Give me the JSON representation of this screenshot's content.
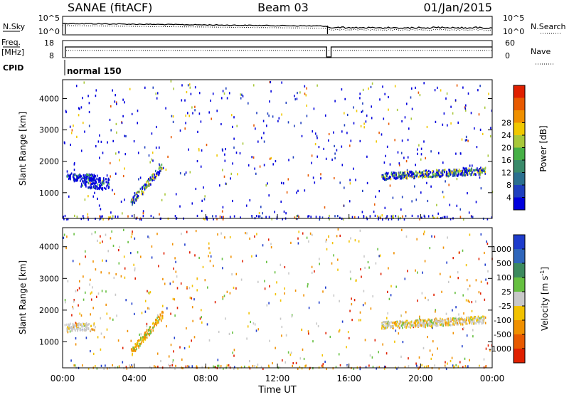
{
  "header": {
    "station": "SANAE (fitACF)",
    "beam": "Beam 03",
    "date": "01/Jan/2015"
  },
  "status": {
    "nsky_label": "N.Sky",
    "nsky_ticks": [
      "10^5",
      "10^0"
    ],
    "nsearch_label": "N.Search",
    "nsearch_ticks": [
      "10^5",
      "10^0"
    ],
    "freq_label": "Freq.",
    "freq_unit": "[MHz]",
    "freq_ticks": [
      "18",
      "8"
    ],
    "nave_label": "Nave",
    "nave_ticks": [
      "60",
      "0"
    ],
    "cpid_label": "CPID",
    "cpid_value": "normal 150"
  },
  "chart_data": [
    {
      "type": "heatmap",
      "ylabel": "Slant Range [km]",
      "xlabel": "",
      "xlim": [
        "00:00",
        "24:00"
      ],
      "ylim": [
        180,
        4600
      ],
      "yticks": [
        "1000",
        "2000",
        "3000",
        "4000"
      ],
      "colorbar": {
        "label": "Power [dB]",
        "ticks": [
          "4",
          "8",
          "12",
          "16",
          "20",
          "24",
          "28"
        ],
        "colors": [
          "#0000dd",
          "#1f3fbf",
          "#2b6f8f",
          "#3a8a6a",
          "#46b046",
          "#a8c83a",
          "#f0c800",
          "#f09000",
          "#e85a00",
          "#e02000"
        ]
      },
      "bands": [
        {
          "t0": 0.2,
          "t1": 1.8,
          "r0": 1380,
          "r1": 1620,
          "dominant": "blue"
        },
        {
          "t0": 1.0,
          "t1": 2.6,
          "r0": 1150,
          "r1": 1500,
          "dominant": "blue"
        },
        {
          "t0": 3.8,
          "t1": 5.6,
          "r0": 700,
          "r1": 1900,
          "dominant": "blue-green"
        },
        {
          "t0": 17.8,
          "t1": 23.6,
          "r0": 1450,
          "r1": 1900,
          "dominant": "blue-green"
        }
      ]
    },
    {
      "type": "heatmap",
      "ylabel": "Slant Range [km]",
      "xlabel": "Time UT",
      "xlim": [
        "00:00",
        "24:00"
      ],
      "ylim": [
        180,
        4600
      ],
      "xticks": [
        "00:00",
        "04:00",
        "08:00",
        "12:00",
        "16:00",
        "20:00",
        "00:00"
      ],
      "yticks": [
        "1000",
        "2000",
        "3000",
        "4000"
      ],
      "colorbar": {
        "label": "Velocity [m s",
        "label_sup": "-1",
        "label_end": "]",
        "ticks": [
          "1000",
          "500",
          "100",
          "25",
          "-25",
          "-100",
          "-500",
          "-1000"
        ],
        "colors": [
          "#1e3ccc",
          "#2f66bb",
          "#3c8a5e",
          "#66c040",
          "#c8c8c8",
          "#f2c200",
          "#f09000",
          "#e85a00",
          "#e02000"
        ]
      },
      "bands": [
        {
          "t0": 0.2,
          "t1": 1.8,
          "r0": 1380,
          "r1": 1620,
          "dominant": "grey"
        },
        {
          "t0": 3.8,
          "t1": 5.6,
          "r0": 700,
          "r1": 1900,
          "dominant": "orange"
        },
        {
          "t0": 17.8,
          "t1": 23.6,
          "r0": 1450,
          "r1": 1900,
          "dominant": "grey-orange"
        }
      ]
    }
  ]
}
